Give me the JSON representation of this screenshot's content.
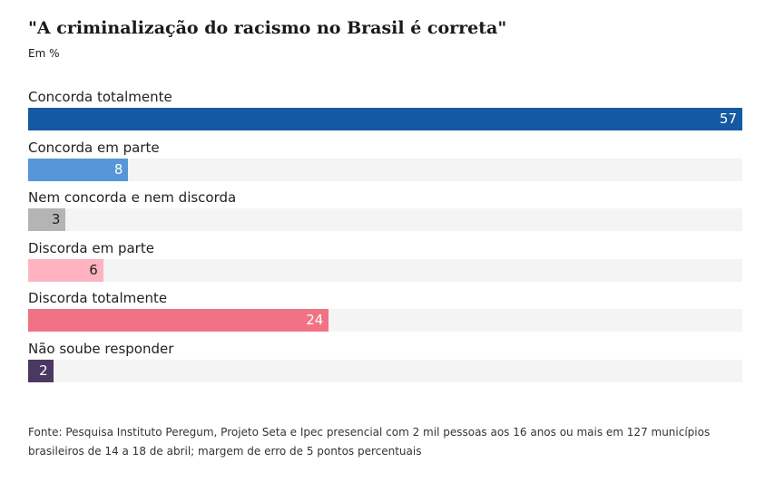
{
  "chart_data": {
    "type": "bar",
    "orientation": "horizontal",
    "title": "\"A criminalização do racismo no Brasil é correta\"",
    "subtitle": "Em %",
    "categories": [
      "Concorda totalmente",
      "Concorda em parte",
      "Nem concorda e nem discorda",
      "Discorda em parte",
      "Discorda totalmente",
      "Não soube responder"
    ],
    "values": [
      57,
      8,
      3,
      6,
      24,
      2
    ],
    "colors": [
      "#1559a3",
      "#5597d8",
      "#b4b4b4",
      "#ffb3c0",
      "#f07284",
      "#4a3862"
    ],
    "label_colors": [
      "#ffffff",
      "#ffffff",
      "#222222",
      "#222222",
      "#ffffff",
      "#ffffff"
    ],
    "xlim": [
      0,
      57
    ],
    "grid": false,
    "legend": "none"
  },
  "source": "Fonte: Pesquisa Instituto Peregum, Projeto Seta e Ipec presencial com 2 mil pessoas aos 16 anos ou mais em 127 municípios brasileiros de 14 a 18 de abril; margem de erro de 5 pontos percentuais"
}
